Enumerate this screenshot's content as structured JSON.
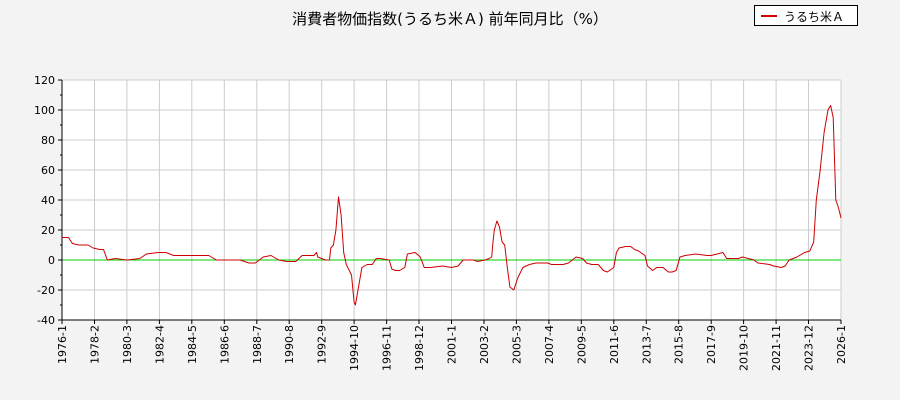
{
  "chart_data": {
    "type": "line",
    "title": "消費者物価指数(うるち米Ａ) 前年同月比（%）",
    "xlabel": "",
    "ylabel": "",
    "ylim": [
      -40,
      120
    ],
    "yticks": [
      -40,
      -20,
      0,
      20,
      40,
      60,
      80,
      100,
      120
    ],
    "xlim": [
      "1976-01",
      "2026-01"
    ],
    "xticks": [
      "1976-1",
      "1978-2",
      "1980-3",
      "1982-4",
      "1984-5",
      "1986-6",
      "1988-7",
      "1990-8",
      "1992-9",
      "1994-10",
      "1996-11",
      "1998-12",
      "2001-1",
      "2003-2",
      "2005-3",
      "2007-4",
      "2009-5",
      "2011-6",
      "2013-7",
      "2015-8",
      "2017-9",
      "2019-10",
      "2021-11",
      "2023-12",
      "2026-1"
    ],
    "grid": true,
    "legend": "top-right",
    "reference_line": {
      "y": 0,
      "color": "#00cc00"
    },
    "colors": {
      "series": "#cc0000",
      "zero_line": "#00cc00",
      "grid": "#cccccc",
      "plot_bg": "#ffffff",
      "page_bg": "#f3f3f3"
    },
    "series": [
      {
        "name": "うるち米Ａ",
        "points": [
          [
            "1976-01",
            15
          ],
          [
            "1976-06",
            15
          ],
          [
            "1976-09",
            11
          ],
          [
            "1977-02",
            10
          ],
          [
            "1977-09",
            10
          ],
          [
            "1978-01",
            8
          ],
          [
            "1978-06",
            7
          ],
          [
            "1978-09",
            7
          ],
          [
            "1978-12",
            0
          ],
          [
            "1979-06",
            1
          ],
          [
            "1980-03",
            0
          ],
          [
            "1981-01",
            1
          ],
          [
            "1981-06",
            4
          ],
          [
            "1982-03",
            5
          ],
          [
            "1982-09",
            5
          ],
          [
            "1983-03",
            3
          ],
          [
            "1984-06",
            3
          ],
          [
            "1985-06",
            3
          ],
          [
            "1985-12",
            0
          ],
          [
            "1987-06",
            0
          ],
          [
            "1988-01",
            -2
          ],
          [
            "1988-06",
            -2
          ],
          [
            "1988-12",
            2
          ],
          [
            "1989-06",
            3
          ],
          [
            "1989-12",
            0
          ],
          [
            "1990-06",
            -1
          ],
          [
            "1991-01",
            -1
          ],
          [
            "1991-06",
            3
          ],
          [
            "1992-03",
            3
          ],
          [
            "1992-05",
            5
          ],
          [
            "1992-06",
            2
          ],
          [
            "1992-12",
            0
          ],
          [
            "1993-03",
            0
          ],
          [
            "1993-04",
            8
          ],
          [
            "1993-06",
            10
          ],
          [
            "1993-08",
            20
          ],
          [
            "1993-10",
            42
          ],
          [
            "1993-12",
            30
          ],
          [
            "1994-02",
            5
          ],
          [
            "1994-04",
            -3
          ],
          [
            "1994-08",
            -10
          ],
          [
            "1994-10",
            -28
          ],
          [
            "1994-11",
            -30
          ],
          [
            "1995-02",
            -15
          ],
          [
            "1995-04",
            -5
          ],
          [
            "1995-08",
            -3
          ],
          [
            "1995-12",
            -3
          ],
          [
            "1996-03",
            1
          ],
          [
            "1996-06",
            1
          ],
          [
            "1997-01",
            0
          ],
          [
            "1997-03",
            -6
          ],
          [
            "1997-06",
            -7
          ],
          [
            "1997-09",
            -7
          ],
          [
            "1998-01",
            -5
          ],
          [
            "1998-03",
            4
          ],
          [
            "1998-09",
            5
          ],
          [
            "1999-01",
            2
          ],
          [
            "1999-04",
            -5
          ],
          [
            "1999-09",
            -5
          ],
          [
            "2000-06",
            -4
          ],
          [
            "2001-01",
            -5
          ],
          [
            "2001-06",
            -4
          ],
          [
            "2001-10",
            0
          ],
          [
            "2002-06",
            0
          ],
          [
            "2002-09",
            -1
          ],
          [
            "2003-03",
            0
          ],
          [
            "2003-06",
            1
          ],
          [
            "2003-08",
            2
          ],
          [
            "2003-09",
            12
          ],
          [
            "2003-10",
            20
          ],
          [
            "2003-12",
            26
          ],
          [
            "2004-02",
            22
          ],
          [
            "2004-04",
            12
          ],
          [
            "2004-06",
            10
          ],
          [
            "2004-08",
            -5
          ],
          [
            "2004-10",
            -18
          ],
          [
            "2005-01",
            -20
          ],
          [
            "2005-04",
            -12
          ],
          [
            "2005-08",
            -5
          ],
          [
            "2006-01",
            -3
          ],
          [
            "2006-06",
            -2
          ],
          [
            "2006-09",
            -2
          ],
          [
            "2007-03",
            -2
          ],
          [
            "2007-06",
            -3
          ],
          [
            "2008-03",
            -3
          ],
          [
            "2008-07",
            -2
          ],
          [
            "2009-01",
            2
          ],
          [
            "2009-06",
            1
          ],
          [
            "2009-09",
            -2
          ],
          [
            "2010-01",
            -3
          ],
          [
            "2010-06",
            -3
          ],
          [
            "2010-10",
            -7
          ],
          [
            "2011-01",
            -8
          ],
          [
            "2011-06",
            -5
          ],
          [
            "2011-08",
            5
          ],
          [
            "2011-10",
            8
          ],
          [
            "2012-03",
            9
          ],
          [
            "2012-07",
            9
          ],
          [
            "2012-10",
            7
          ],
          [
            "2013-01",
            6
          ],
          [
            "2013-06",
            3
          ],
          [
            "2013-08",
            -4
          ],
          [
            "2013-12",
            -7
          ],
          [
            "2014-03",
            -5
          ],
          [
            "2014-08",
            -5
          ],
          [
            "2014-12",
            -8
          ],
          [
            "2015-03",
            -8
          ],
          [
            "2015-06",
            -7
          ],
          [
            "2015-09",
            2
          ],
          [
            "2016-01",
            3
          ],
          [
            "2016-09",
            4
          ],
          [
            "2017-06",
            3
          ],
          [
            "2017-09",
            3
          ],
          [
            "2018-06",
            5
          ],
          [
            "2018-09",
            1
          ],
          [
            "2019-06",
            1
          ],
          [
            "2019-09",
            2
          ],
          [
            "2020-06",
            0
          ],
          [
            "2020-09",
            -2
          ],
          [
            "2021-06",
            -3
          ],
          [
            "2021-09",
            -4
          ],
          [
            "2022-03",
            -5
          ],
          [
            "2022-06",
            -4
          ],
          [
            "2022-09",
            0
          ],
          [
            "2023-03",
            2
          ],
          [
            "2023-09",
            5
          ],
          [
            "2024-01",
            6
          ],
          [
            "2024-04",
            12
          ],
          [
            "2024-06",
            40
          ],
          [
            "2024-09",
            60
          ],
          [
            "2024-12",
            85
          ],
          [
            "2025-03",
            100
          ],
          [
            "2025-05",
            103
          ],
          [
            "2025-07",
            95
          ],
          [
            "2025-09",
            40
          ],
          [
            "2025-11",
            35
          ],
          [
            "2026-01",
            28
          ]
        ]
      }
    ]
  }
}
